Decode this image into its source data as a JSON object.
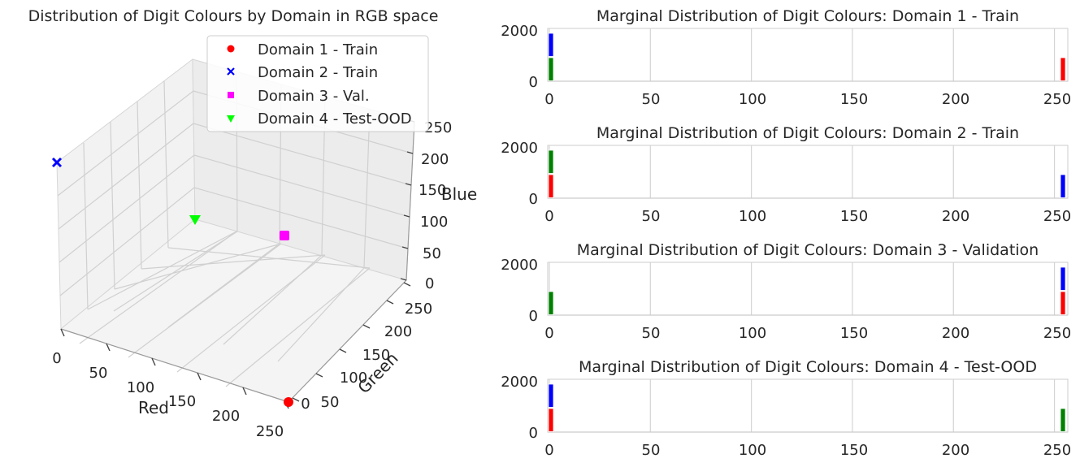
{
  "chart_data": [
    {
      "type": "scatter3d",
      "title": "Distribution of Digit Colours by Domain in RGB space",
      "xlabel": "Red",
      "ylabel": "Green",
      "zlabel": "Blue",
      "xlim": [
        0,
        255
      ],
      "ylim": [
        0,
        255
      ],
      "zlim": [
        0,
        255
      ],
      "xticks": [
        0,
        50,
        100,
        150,
        200,
        250
      ],
      "yticks": [
        0,
        50,
        100,
        150,
        200,
        250
      ],
      "zticks": [
        0,
        50,
        100,
        150,
        200,
        250
      ],
      "legend_position": "top-right",
      "series": [
        {
          "name": "Domain 1 - Train",
          "marker": "circle",
          "color": "#ff0000",
          "points": [
            [
              255,
              0,
              0
            ]
          ]
        },
        {
          "name": "Domain 2 - Train",
          "marker": "x",
          "color": "#0000ff",
          "points": [
            [
              0,
              0,
              255
            ]
          ]
        },
        {
          "name": "Domain 3 - Val.",
          "marker": "square",
          "color": "#ff00ff",
          "points": [
            [
              255,
              0,
              255
            ]
          ]
        },
        {
          "name": "Domain 4 - Test-OOD",
          "marker": "triangle-down",
          "color": "#00ff00",
          "points": [
            [
              0,
              255,
              0
            ]
          ]
        }
      ]
    },
    {
      "type": "histogram",
      "title": "Marginal Distribution of Digit Colours: Domain 1 - Train",
      "xlim": [
        0,
        255
      ],
      "ylim": [
        0,
        2000
      ],
      "xticks": [
        0,
        50,
        100,
        150,
        200,
        250
      ],
      "yticks": [
        0,
        2000
      ],
      "series": [
        {
          "name": "R",
          "color": "#ff0000",
          "x": 255,
          "count": 1000,
          "stack_base": 0
        },
        {
          "name": "G",
          "color": "#008000",
          "x": 0,
          "count": 1000,
          "stack_base": 0
        },
        {
          "name": "B",
          "color": "#0000ff",
          "x": 0,
          "count": 1000,
          "stack_base": 1000
        }
      ]
    },
    {
      "type": "histogram",
      "title": "Marginal Distribution of Digit Colours: Domain 2 - Train",
      "xlim": [
        0,
        255
      ],
      "ylim": [
        0,
        2000
      ],
      "xticks": [
        0,
        50,
        100,
        150,
        200,
        250
      ],
      "yticks": [
        0,
        2000
      ],
      "series": [
        {
          "name": "R",
          "color": "#ff0000",
          "x": 0,
          "count": 1000,
          "stack_base": 0
        },
        {
          "name": "G",
          "color": "#008000",
          "x": 0,
          "count": 1000,
          "stack_base": 1000
        },
        {
          "name": "B",
          "color": "#0000ff",
          "x": 255,
          "count": 1000,
          "stack_base": 0
        }
      ]
    },
    {
      "type": "histogram",
      "title": "Marginal Distribution of Digit Colours: Domain 3 - Validation",
      "xlim": [
        0,
        255
      ],
      "ylim": [
        0,
        2000
      ],
      "xticks": [
        0,
        50,
        100,
        150,
        200,
        250
      ],
      "yticks": [
        0,
        2000
      ],
      "series": [
        {
          "name": "R",
          "color": "#ff0000",
          "x": 255,
          "count": 1000,
          "stack_base": 0
        },
        {
          "name": "G",
          "color": "#008000",
          "x": 0,
          "count": 1000,
          "stack_base": 0
        },
        {
          "name": "B",
          "color": "#0000ff",
          "x": 255,
          "count": 1000,
          "stack_base": 1000
        }
      ]
    },
    {
      "type": "histogram",
      "title": "Marginal Distribution of Digit Colours: Domain 4 - Test-OOD",
      "xlim": [
        0,
        255
      ],
      "ylim": [
        0,
        2000
      ],
      "xticks": [
        0,
        50,
        100,
        150,
        200,
        250
      ],
      "yticks": [
        0,
        2000
      ],
      "series": [
        {
          "name": "R",
          "color": "#ff0000",
          "x": 0,
          "count": 1000,
          "stack_base": 0
        },
        {
          "name": "G",
          "color": "#008000",
          "x": 255,
          "count": 1000,
          "stack_base": 0
        },
        {
          "name": "B",
          "color": "#0000ff",
          "x": 0,
          "count": 1000,
          "stack_base": 1000
        }
      ]
    }
  ]
}
